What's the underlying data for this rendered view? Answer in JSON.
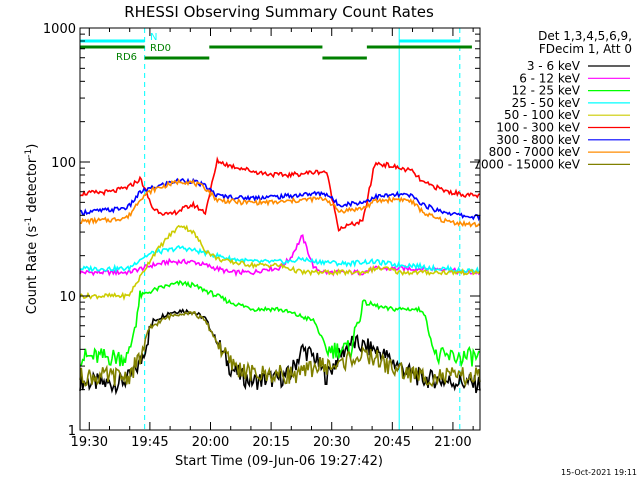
{
  "chart_data": {
    "type": "line",
    "title": "RHESSI Observing Summary Count Rates",
    "xlabel": "Start Time (09-Jun-06 19:27:42)",
    "ylabel_main": "Count Rate (s",
    "ylabel_sup1": "-1",
    "ylabel_mid": " detector",
    "ylabel_sup2": "-1",
    "ylabel_end": ")",
    "yscale": "log",
    "ylim": [
      1,
      1000
    ],
    "xlim_minutes": [
      0,
      99
    ],
    "x_ticks": [
      {
        "label": "19:30",
        "minute": 2.3
      },
      {
        "label": "19:45",
        "minute": 17.3
      },
      {
        "label": "20:00",
        "minute": 32.3
      },
      {
        "label": "20:15",
        "minute": 47.3
      },
      {
        "label": "20:30",
        "minute": 62.3
      },
      {
        "label": "20:45",
        "minute": 77.3
      },
      {
        "label": "21:00",
        "minute": 92.3
      }
    ],
    "y_ticks": [
      {
        "label": "1",
        "value": 1
      },
      {
        "label": "10",
        "value": 10
      },
      {
        "label": "100",
        "value": 100
      },
      {
        "label": "1000",
        "value": 1000
      }
    ],
    "legend_header": [
      "Det 1,3,4,5,6,9,",
      "FDecim 1, Att 0"
    ],
    "legend_position": "right",
    "series": [
      {
        "name": "3 - 6 keV",
        "color": "#000000",
        "x": [
          0,
          8,
          12,
          15,
          18,
          22,
          25,
          28,
          31,
          34,
          37,
          40,
          43,
          46,
          49,
          52,
          55,
          58,
          61,
          64,
          67,
          70,
          73,
          76,
          79,
          82,
          85,
          88,
          91,
          94,
          97
        ],
        "y": [
          2.3,
          2.2,
          2.4,
          3.2,
          6.5,
          7.5,
          7.8,
          7.6,
          6.8,
          4.5,
          3.0,
          2.5,
          2.3,
          2.4,
          2.4,
          2.6,
          4.0,
          3.5,
          2.5,
          3.5,
          4.5,
          4.2,
          4.0,
          3.5,
          3.0,
          2.6,
          2.4,
          2.4,
          2.3,
          2.3,
          2.2
        ]
      },
      {
        "name": "6 - 12 keV",
        "color": "#ff00ff",
        "x": [
          0,
          8,
          12,
          15,
          18,
          22,
          25,
          28,
          31,
          34,
          37,
          40,
          43,
          46,
          49,
          52,
          55,
          58,
          61,
          64,
          67,
          70,
          73,
          76,
          79,
          82,
          85,
          88,
          91,
          94,
          97
        ],
        "y": [
          15,
          15,
          15,
          16,
          17,
          18,
          18,
          18,
          17,
          16,
          15,
          15,
          15,
          16,
          16,
          19,
          28,
          16,
          15,
          15,
          15,
          15,
          16,
          16,
          16,
          16,
          16,
          16,
          16,
          15,
          15
        ]
      },
      {
        "name": "12 - 25 keV",
        "color": "#00ff00",
        "x": [
          0,
          8,
          12,
          15,
          18,
          22,
          25,
          28,
          31,
          34,
          37,
          40,
          43,
          46,
          49,
          52,
          55,
          58,
          61,
          64,
          67,
          70,
          73,
          76,
          79,
          82,
          85,
          88,
          91,
          94,
          97
        ],
        "y": [
          3.5,
          3.5,
          3.5,
          10,
          11,
          12,
          12.5,
          12,
          11,
          10,
          9,
          8.5,
          8,
          8,
          8,
          7.5,
          7,
          6.5,
          4,
          4,
          4,
          9,
          8.5,
          8,
          8,
          8,
          7.8,
          3.5,
          3.5,
          3.5,
          3.5
        ]
      },
      {
        "name": "25 - 50 keV",
        "color": "#00ffff",
        "x": [
          0,
          8,
          12,
          15,
          18,
          22,
          25,
          28,
          31,
          34,
          37,
          40,
          43,
          46,
          49,
          52,
          55,
          58,
          61,
          64,
          67,
          70,
          73,
          76,
          79,
          82,
          85,
          88,
          91,
          94,
          97
        ],
        "y": [
          16,
          16,
          16,
          19,
          21,
          22,
          23,
          22,
          21,
          20,
          19,
          18.5,
          18,
          18,
          18,
          18,
          19,
          18,
          18,
          17.5,
          17.5,
          18,
          18,
          17.5,
          17,
          17,
          16.5,
          16,
          16,
          15.5,
          15.5
        ]
      },
      {
        "name": "50 - 100 keV",
        "color": "#cccc00",
        "x": [
          0,
          8,
          12,
          15,
          18,
          22,
          25,
          28,
          31,
          34,
          37,
          40,
          43,
          46,
          49,
          52,
          55,
          58,
          61,
          64,
          67,
          70,
          73,
          76,
          79,
          82,
          85,
          88,
          91,
          94,
          97
        ],
        "y": [
          10,
          10,
          10,
          14,
          20,
          28,
          34,
          30,
          22,
          19,
          18,
          17.5,
          17,
          17,
          17,
          16,
          15,
          15,
          15,
          15,
          15,
          15,
          16,
          16,
          15,
          15,
          15,
          15,
          15,
          15,
          15
        ]
      },
      {
        "name": "100 - 300 keV",
        "color": "#ff0000",
        "x": [
          0,
          8,
          12,
          15,
          18,
          22,
          25,
          28,
          31,
          34,
          37,
          40,
          43,
          46,
          49,
          52,
          55,
          58,
          61,
          64,
          67,
          70,
          73,
          76,
          79,
          82,
          85,
          88,
          91,
          94,
          97
        ],
        "y": [
          58,
          60,
          65,
          75,
          45,
          40,
          44,
          48,
          42,
          102,
          94,
          90,
          85,
          82,
          80,
          80,
          82,
          84,
          85,
          32,
          34,
          36,
          98,
          95,
          90,
          86,
          70,
          65,
          60,
          58,
          56
        ]
      },
      {
        "name": "300 - 800 keV",
        "color": "#0000ff",
        "x": [
          0,
          8,
          12,
          15,
          18,
          22,
          25,
          28,
          31,
          34,
          37,
          40,
          43,
          46,
          49,
          52,
          55,
          58,
          61,
          64,
          67,
          70,
          73,
          76,
          79,
          82,
          85,
          88,
          91,
          94,
          97
        ],
        "y": [
          42,
          44,
          46,
          60,
          64,
          70,
          73,
          72,
          66,
          56,
          55,
          54,
          54,
          55,
          55,
          56,
          57,
          58,
          58,
          48,
          49,
          50,
          55,
          56,
          57,
          56,
          48,
          44,
          42,
          40,
          39
        ]
      },
      {
        "name": "800 - 7000 keV",
        "color": "#ff8c00",
        "x": [
          0,
          8,
          12,
          15,
          18,
          22,
          25,
          28,
          31,
          34,
          37,
          40,
          43,
          46,
          49,
          52,
          55,
          58,
          61,
          64,
          67,
          70,
          73,
          76,
          79,
          82,
          85,
          88,
          91,
          94,
          97
        ],
        "y": [
          36,
          37,
          39,
          54,
          62,
          68,
          72,
          70,
          64,
          52,
          51,
          50,
          50,
          50,
          50,
          51,
          52,
          53,
          53,
          43,
          44,
          45,
          51,
          52,
          53,
          51,
          42,
          38,
          36,
          35,
          34
        ]
      },
      {
        "name": "7000 - 15000 keV",
        "color": "#808000",
        "x": [
          0,
          8,
          12,
          15,
          18,
          22,
          25,
          28,
          31,
          34,
          37,
          40,
          43,
          46,
          49,
          52,
          55,
          58,
          61,
          64,
          67,
          70,
          73,
          76,
          79,
          82,
          85,
          88,
          91,
          94,
          97
        ],
        "y": [
          2.5,
          2.5,
          2.5,
          3.5,
          6.0,
          7.0,
          7.5,
          7.5,
          6.5,
          4.5,
          3.2,
          2.8,
          2.6,
          2.6,
          2.6,
          2.6,
          2.6,
          3.0,
          3.0,
          3.0,
          3.5,
          3.5,
          3.5,
          3.0,
          2.8,
          2.6,
          2.5,
          2.5,
          2.5,
          2.5,
          2.5
        ]
      }
    ],
    "flags": [
      {
        "name": "N",
        "color": "#00ffff",
        "segments": [
          [
            0,
            16
          ],
          [
            79,
            94
          ]
        ],
        "label": "N"
      },
      {
        "name": "RD0",
        "color": "#008000",
        "segments": [
          [
            0,
            16
          ],
          [
            32,
            60
          ],
          [
            71,
            97
          ]
        ],
        "label": "RD0"
      },
      {
        "name": "RD6",
        "color": "#008000",
        "segments": [
          [
            16,
            32
          ],
          [
            60,
            71
          ]
        ],
        "label": "RD6"
      }
    ],
    "markers_solid": [
      79
    ],
    "markers_dashed": [
      16,
      94
    ]
  },
  "footer_date": "15-Oct-2021 19:11"
}
